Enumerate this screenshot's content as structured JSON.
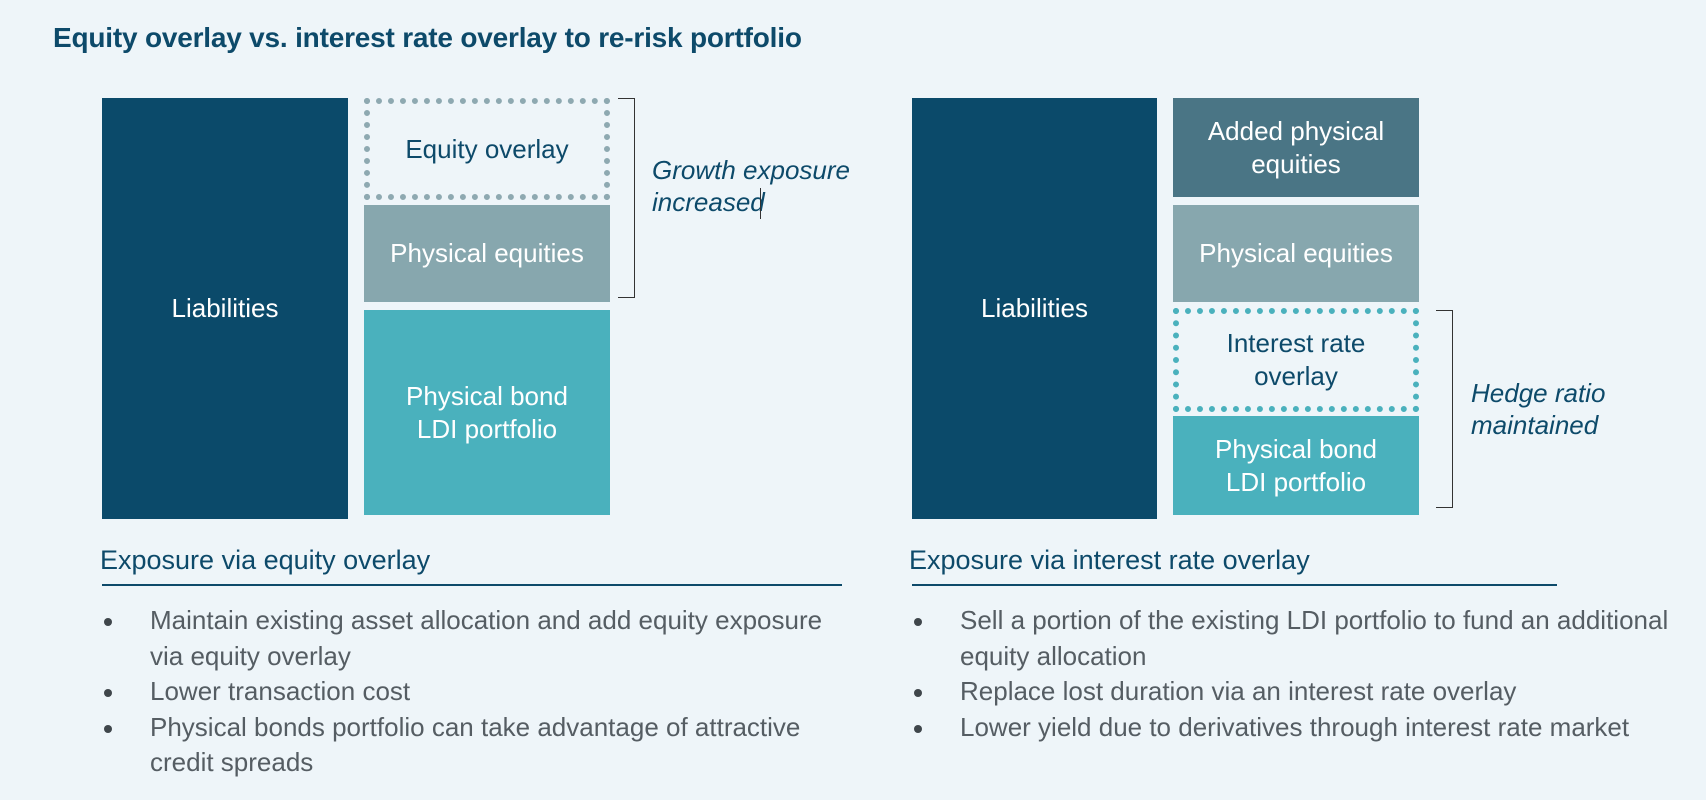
{
  "title": "Equity overlay vs. interest rate overlay to re-risk portfolio",
  "left": {
    "liabilities": "Liabilities",
    "equity_overlay": "Equity overlay",
    "physical_equities": "Physical equities",
    "ldi": "Physical bond LDI portfolio",
    "note": [
      "Growth exposure",
      "increased"
    ],
    "heading": "Exposure via equity overlay",
    "bullets": [
      "Maintain existing asset allocation and add equity exposure via equity overlay",
      "Lower transaction cost",
      "Physical bonds portfolio can take advantage of attractive credit spreads"
    ]
  },
  "right": {
    "liabilities": "Liabilities",
    "added_equities": "Added physical equities",
    "physical_equities": "Physical equities",
    "interest_overlay": "Interest rate overlay",
    "ldi": "Physical bond LDI portfolio",
    "note": [
      "Hedge ratio",
      "maintained"
    ],
    "heading": "Exposure via interest rate overlay",
    "bullets": [
      "Sell a portion of the existing LDI portfolio to fund an additional equity allocation",
      "Replace lost duration via an interest rate overlay",
      "Lower yield due to derivatives through interest rate market"
    ]
  },
  "colors": {
    "liabilities": "#0b4a6a",
    "physical_equities": "#87a7ae",
    "added_equities": "#4a7585",
    "ldi": "#4ab1bd",
    "title_text": "#0d4a6a",
    "background": "#eef5f9"
  }
}
